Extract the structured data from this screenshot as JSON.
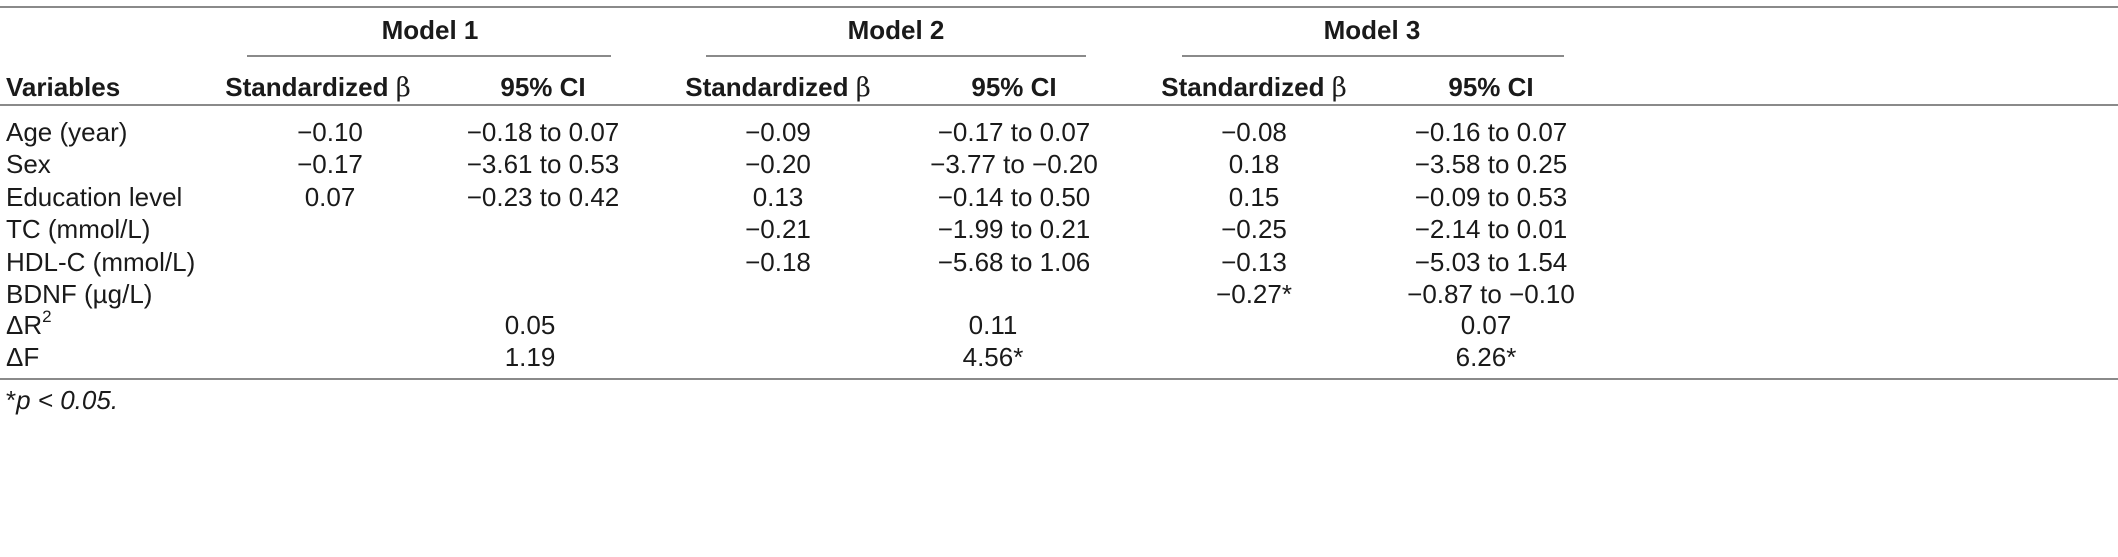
{
  "table": {
    "group_headers": [
      "Model 1",
      "Model 2",
      "Model 3"
    ],
    "col_variables": "Variables",
    "col_beta": "Standardized ",
    "col_beta_symbol": "β",
    "col_ci": "95% CI",
    "rows": [
      {
        "label": "Age (year)",
        "cells": [
          "−0.10",
          "−0.18 to 0.07",
          "−0.09",
          "−0.17 to 0.07",
          "−0.08",
          "−0.16 to 0.07"
        ]
      },
      {
        "label": "Sex",
        "cells": [
          "−0.17",
          "−3.61 to 0.53",
          "−0.20",
          "−3.77 to −0.20",
          "0.18",
          "−3.58 to 0.25"
        ]
      },
      {
        "label": "Education level",
        "cells": [
          "0.07",
          "−0.23 to 0.42",
          "0.13",
          "−0.14 to 0.50",
          "0.15",
          "−0.09 to 0.53"
        ]
      },
      {
        "label": "TC (mmol/L)",
        "cells": [
          "",
          "",
          "−0.21",
          "−1.99 to 0.21",
          "−0.25",
          "−2.14 to 0.01"
        ]
      },
      {
        "label": "HDL-C (mmol/L)",
        "cells": [
          "",
          "",
          "−0.18",
          "−5.68 to 1.06",
          "−0.13",
          "−5.03 to 1.54"
        ]
      },
      {
        "label": "BDNF (µg/L)",
        "cells": [
          "",
          "",
          "",
          "",
          "−0.27*",
          "−0.87 to −0.10"
        ]
      }
    ],
    "delta_r2_label": "ΔR",
    "delta_r2_sup": "2",
    "delta_r2_values": [
      "0.05",
      "0.11",
      "0.07"
    ],
    "delta_f_label": "ΔF",
    "delta_f_values": [
      "1.19",
      "4.56*",
      "6.26*"
    ]
  },
  "footnote": {
    "star": "*",
    "text": "p < 0.05."
  }
}
